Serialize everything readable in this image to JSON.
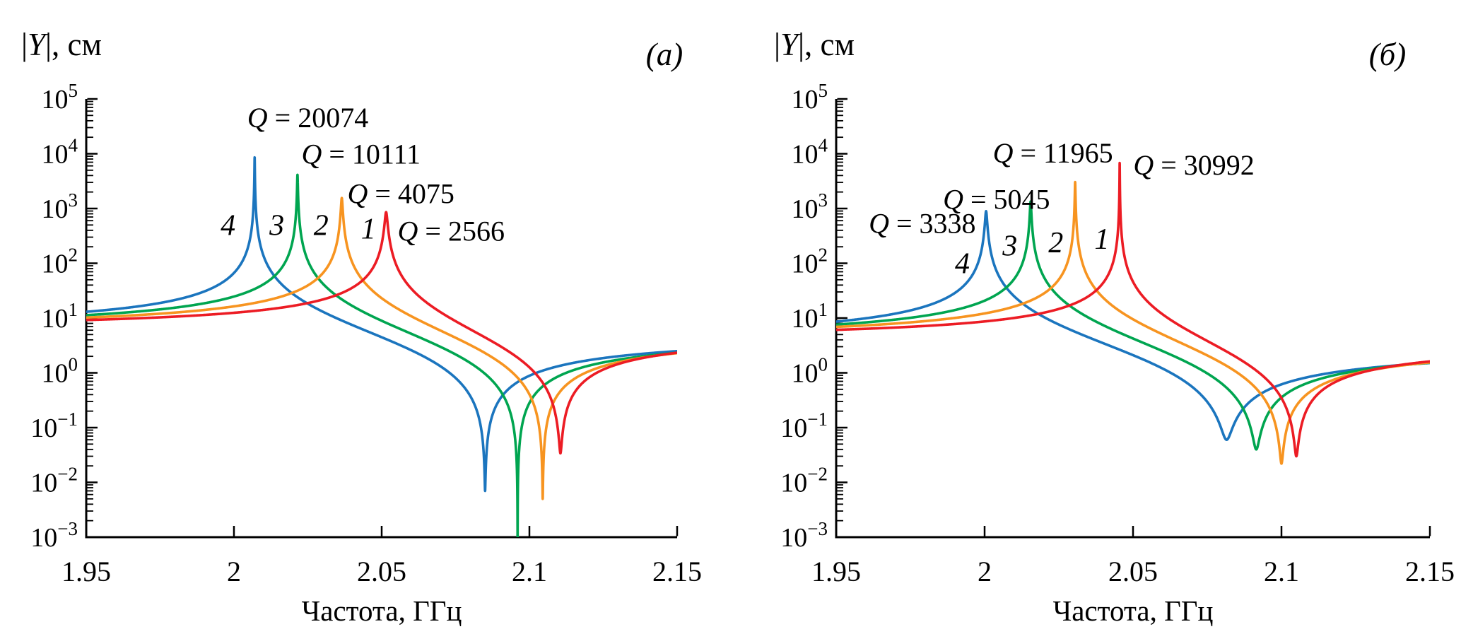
{
  "figure": {
    "background": "#ffffff",
    "axis_color": "#000000",
    "y_axis_label_parts": {
      "pre": "|",
      "italic": "Y",
      "post": "|, см"
    },
    "x_axis_label": "Частота, ГГц",
    "x_ticks": [
      {
        "value": 1.95,
        "label": "1.95"
      },
      {
        "value": 2.0,
        "label": "2"
      },
      {
        "value": 2.05,
        "label": "2.05"
      },
      {
        "value": 2.1,
        "label": "2.1"
      },
      {
        "value": 2.15,
        "label": "2.15"
      }
    ],
    "y_tick_base": "10",
    "y_ticks": [
      {
        "exp": 5,
        "sup": "5"
      },
      {
        "exp": 4,
        "sup": "4"
      },
      {
        "exp": 3,
        "sup": "3"
      },
      {
        "exp": 2,
        "sup": "2"
      },
      {
        "exp": 1,
        "sup": "1"
      },
      {
        "exp": 0,
        "sup": "0"
      },
      {
        "exp": -1,
        "sup": "−1"
      },
      {
        "exp": -2,
        "sup": "−2"
      },
      {
        "exp": -3,
        "sup": "−3"
      }
    ]
  },
  "chart_data": [
    {
      "type": "line",
      "panel_tag": "(a)",
      "xlabel": "Частота, ГГц",
      "ylabel": "|Y|, см",
      "x_range_GHz": [
        1.95,
        2.15
      ],
      "y_range_cm": [
        0.001,
        100000
      ],
      "y_scale": "log",
      "x_tick_values": [
        1.95,
        2.0,
        2.05,
        2.1,
        2.15
      ],
      "grid": false,
      "series": [
        {
          "name": "4",
          "color": "#1B75BE",
          "Q": 20074,
          "q_text": "Q = 20074",
          "resonance_GHz": 2.007,
          "antiresonance_GHz": 2.085,
          "value_at_1950_cm": 13.0,
          "peak_cm": 10000,
          "dip_cm": 0.007,
          "q_label_center": {
            "f_GHz": 2.025,
            "y_cm": 46000
          },
          "curve_label": {
            "text": "4",
            "f_GHz": 1.998,
            "y_cm": 500
          }
        },
        {
          "name": "3",
          "color": "#00A550",
          "Q": 10111,
          "q_text": "Q = 10111",
          "resonance_GHz": 2.0215,
          "antiresonance_GHz": 2.096,
          "value_at_1950_cm": 11.3,
          "peak_cm": 3500,
          "dip_cm": 0.0005,
          "q_label_center": {
            "f_GHz": 2.043,
            "y_cm": 10000
          },
          "curve_label": {
            "text": "3",
            "f_GHz": 2.0145,
            "y_cm": 500
          }
        },
        {
          "name": "2",
          "color": "#F79420",
          "Q": 4075,
          "q_text": "Q = 4075",
          "resonance_GHz": 2.0365,
          "antiresonance_GHz": 2.1045,
          "value_at_1950_cm": 10.2,
          "peak_cm": 1700,
          "dip_cm": 0.005,
          "q_label_center": {
            "f_GHz": 2.0565,
            "y_cm": 1900
          },
          "curve_label": {
            "text": "2",
            "f_GHz": 2.0295,
            "y_cm": 500
          }
        },
        {
          "name": "1",
          "color": "#EC1C24",
          "Q": 2566,
          "q_text": "Q = 2566",
          "resonance_GHz": 2.0515,
          "antiresonance_GHz": 2.1105,
          "value_at_1950_cm": 9.2,
          "peak_cm": 900,
          "dip_cm": 0.034,
          "q_label_center": {
            "f_GHz": 2.0735,
            "y_cm": 390
          },
          "curve_label": {
            "text": "1",
            "f_GHz": 2.0455,
            "y_cm": 430
          }
        }
      ]
    },
    {
      "type": "line",
      "panel_tag": "(б)",
      "xlabel": "Частота, ГГц",
      "ylabel": "|Y|, см",
      "x_range_GHz": [
        1.95,
        2.15
      ],
      "y_range_cm": [
        0.001,
        100000
      ],
      "y_scale": "log",
      "x_tick_values": [
        1.95,
        2.0,
        2.05,
        2.1,
        2.15
      ],
      "grid": false,
      "series": [
        {
          "name": "4",
          "color": "#1B75BE",
          "Q": 3338,
          "q_text": "Q = 3338",
          "resonance_GHz": 2.0005,
          "antiresonance_GHz": 2.0815,
          "value_at_1950_cm": 8.6,
          "peak_cm": 700,
          "dip_cm": 0.06,
          "q_label_center": {
            "f_GHz": 1.979,
            "y_cm": 540
          },
          "curve_label": {
            "text": "4",
            "f_GHz": 1.9925,
            "y_cm": 100
          }
        },
        {
          "name": "3",
          "color": "#00A550",
          "Q": 5045,
          "q_text": "Q = 5045",
          "resonance_GHz": 2.0155,
          "antiresonance_GHz": 2.0915,
          "value_at_1950_cm": 7.6,
          "peak_cm": 1200,
          "dip_cm": 0.04,
          "q_label_center": {
            "f_GHz": 2.004,
            "y_cm": 1500
          },
          "curve_label": {
            "text": "3",
            "f_GHz": 2.0085,
            "y_cm": 210
          }
        },
        {
          "name": "2",
          "color": "#F79420",
          "Q": 11965,
          "q_text": "Q = 11965",
          "resonance_GHz": 2.0305,
          "antiresonance_GHz": 2.1,
          "value_at_1950_cm": 6.9,
          "peak_cm": 2400,
          "dip_cm": 0.022,
          "q_label_center": {
            "f_GHz": 2.023,
            "y_cm": 10500
          },
          "curve_label": {
            "text": "2",
            "f_GHz": 2.024,
            "y_cm": 240
          }
        },
        {
          "name": "1",
          "color": "#EC1C24",
          "Q": 30992,
          "q_text": "Q = 30992",
          "resonance_GHz": 2.0455,
          "antiresonance_GHz": 2.105,
          "value_at_1950_cm": 6.1,
          "peak_cm": 6200,
          "dip_cm": 0.03,
          "q_label_center": {
            "f_GHz": 2.0705,
            "y_cm": 6300
          },
          "curve_label": {
            "text": "1",
            "f_GHz": 2.0395,
            "y_cm": 280
          }
        }
      ]
    }
  ]
}
